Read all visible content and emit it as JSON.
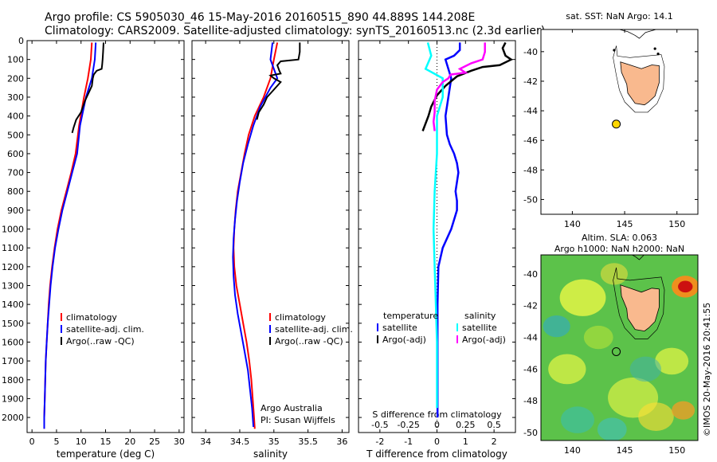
{
  "title_line1": "Argo profile: CS 5905030_46 15-May-2016 20160515_890 44.889S 144.208E",
  "title_line2": "Climatology: CARS2009. Satellite-adjusted climatology: synTS_20160513.nc (2.3d earlier)",
  "watermark": "©IMOS 20-May-2016 20:41:55",
  "colors": {
    "clim": "#ff0000",
    "sat": "#0000ff",
    "argo": "#000000",
    "sal_sat": "#00ffff",
    "sal_argo": "#ff00ff",
    "land": "#f9b98e"
  },
  "chart_data": [
    {
      "type": "line",
      "id": "temperature",
      "xlabel": "temperature (deg C)",
      "ylabel": "",
      "xlim": [
        -1,
        31
      ],
      "ylim": [
        2080,
        0
      ],
      "xticks": [
        0,
        5,
        10,
        15,
        20,
        25,
        30
      ],
      "yticks": [
        0,
        100,
        200,
        300,
        400,
        500,
        600,
        700,
        800,
        900,
        1000,
        1100,
        1200,
        1300,
        1400,
        1500,
        1600,
        1700,
        1800,
        1900,
        2000
      ],
      "legend": [
        "climatology",
        "satellite-adj. clim.",
        "Argo(..raw -QC)"
      ],
      "legend_colors": [
        "#ff0000",
        "#0000ff",
        "#000000"
      ],
      "series": [
        {
          "name": "climatology",
          "color": "#ff0000",
          "points": [
            [
              12.2,
              10
            ],
            [
              12.0,
              100
            ],
            [
              11.4,
              200
            ],
            [
              10.6,
              300
            ],
            [
              9.6,
              450
            ],
            [
              8.9,
              600
            ],
            [
              8.0,
              700
            ],
            [
              7.0,
              800
            ],
            [
              6.0,
              900
            ],
            [
              5.2,
              1000
            ],
            [
              4.6,
              1100
            ],
            [
              4.1,
              1200
            ],
            [
              3.7,
              1300
            ],
            [
              3.4,
              1400
            ],
            [
              3.2,
              1500
            ],
            [
              3.0,
              1600
            ],
            [
              2.8,
              1700
            ],
            [
              2.7,
              1800
            ],
            [
              2.6,
              1900
            ],
            [
              2.5,
              2000
            ],
            [
              2.5,
              2060
            ]
          ]
        },
        {
          "name": "satellite-adj. clim.",
          "color": "#0000ff",
          "points": [
            [
              13.0,
              10
            ],
            [
              12.8,
              100
            ],
            [
              12.2,
              200
            ],
            [
              11.0,
              300
            ],
            [
              9.8,
              450
            ],
            [
              9.2,
              600
            ],
            [
              8.2,
              700
            ],
            [
              7.2,
              800
            ],
            [
              6.2,
              900
            ],
            [
              5.4,
              1000
            ],
            [
              4.7,
              1100
            ],
            [
              4.2,
              1200
            ],
            [
              3.8,
              1300
            ],
            [
              3.5,
              1400
            ],
            [
              3.2,
              1500
            ],
            [
              3.0,
              1600
            ],
            [
              2.8,
              1700
            ],
            [
              2.7,
              1800
            ],
            [
              2.6,
              1900
            ],
            [
              2.5,
              2000
            ],
            [
              2.5,
              2060
            ]
          ]
        },
        {
          "name": "Argo(..raw -QC)",
          "color": "#000000",
          "points": [
            [
              14.6,
              10
            ],
            [
              14.5,
              60
            ],
            [
              14.4,
              100
            ],
            [
              14.3,
              130
            ],
            [
              14.2,
              150
            ],
            [
              13.2,
              160
            ],
            [
              12.6,
              180
            ],
            [
              12.4,
              200
            ],
            [
              12.2,
              240
            ],
            [
              11.5,
              280
            ],
            [
              10.8,
              320
            ],
            [
              10.0,
              380
            ],
            [
              9.0,
              420
            ],
            [
              8.5,
              460
            ],
            [
              8.2,
              490
            ]
          ]
        }
      ]
    },
    {
      "type": "line",
      "id": "salinity",
      "xlabel": "salinity",
      "ylabel": "",
      "xlim": [
        33.8,
        36.1
      ],
      "ylim": [
        2080,
        0
      ],
      "xticks": [
        34,
        34.5,
        35,
        35.5,
        36
      ],
      "legend": [
        "climatology",
        "satellite-adj. clim.",
        "Argo(..raw -QC)"
      ],
      "legend_colors": [
        "#ff0000",
        "#0000ff",
        "#000000"
      ],
      "annotation": [
        "Argo Australia",
        "PI: Susan Wijffels"
      ],
      "series": [
        {
          "name": "climatology",
          "color": "#ff0000",
          "points": [
            [
              35.05,
              10
            ],
            [
              35.0,
              100
            ],
            [
              34.95,
              200
            ],
            [
              34.85,
              300
            ],
            [
              34.72,
              400
            ],
            [
              34.63,
              500
            ],
            [
              34.57,
              600
            ],
            [
              34.52,
              700
            ],
            [
              34.47,
              800
            ],
            [
              34.44,
              900
            ],
            [
              34.42,
              1000
            ],
            [
              34.41,
              1100
            ],
            [
              34.42,
              1200
            ],
            [
              34.45,
              1300
            ],
            [
              34.5,
              1400
            ],
            [
              34.55,
              1500
            ],
            [
              34.6,
              1600
            ],
            [
              34.64,
              1700
            ],
            [
              34.67,
              1800
            ],
            [
              34.69,
              1900
            ],
            [
              34.71,
              2000
            ],
            [
              34.72,
              2060
            ]
          ]
        },
        {
          "name": "satellite-adj. clim.",
          "color": "#0000ff",
          "points": [
            [
              34.98,
              10
            ],
            [
              34.95,
              100
            ],
            [
              35.0,
              150
            ],
            [
              35.05,
              200
            ],
            [
              34.95,
              250
            ],
            [
              34.8,
              350
            ],
            [
              34.7,
              450
            ],
            [
              34.62,
              550
            ],
            [
              34.55,
              650
            ],
            [
              34.5,
              750
            ],
            [
              34.46,
              850
            ],
            [
              34.43,
              950
            ],
            [
              34.41,
              1050
            ],
            [
              34.4,
              1150
            ],
            [
              34.41,
              1250
            ],
            [
              34.43,
              1350
            ],
            [
              34.47,
              1450
            ],
            [
              34.52,
              1550
            ],
            [
              34.57,
              1650
            ],
            [
              34.62,
              1750
            ],
            [
              34.65,
              1850
            ],
            [
              34.68,
              1950
            ],
            [
              34.7,
              2050
            ]
          ]
        },
        {
          "name": "Argo(..raw -QC)",
          "color": "#000000",
          "points": [
            [
              35.38,
              10
            ],
            [
              35.38,
              60
            ],
            [
              35.36,
              100
            ],
            [
              35.1,
              110
            ],
            [
              35.05,
              130
            ],
            [
              35.08,
              160
            ],
            [
              35.1,
              175
            ],
            [
              34.95,
              185
            ],
            [
              35.0,
              200
            ],
            [
              35.1,
              220
            ],
            [
              35.0,
              260
            ],
            [
              34.9,
              300
            ],
            [
              34.85,
              340
            ],
            [
              34.78,
              380
            ],
            [
              34.75,
              420
            ]
          ]
        }
      ]
    },
    {
      "type": "line",
      "id": "difference",
      "xlabel": "T difference from climatology",
      "x2label": "S difference from climatology",
      "xlim": [
        -2.75,
        2.75
      ],
      "x2lim": [
        -0.6875,
        0.6875
      ],
      "ylim": [
        2080,
        0
      ],
      "xticks": [
        -2,
        -1,
        0,
        1,
        2
      ],
      "x2ticks": [
        -0.5,
        -0.25,
        0,
        0.25,
        0.5
      ],
      "legend_headers": [
        "temperature",
        "salinity"
      ],
      "legend": [
        "satellite",
        "Argo(-adj)",
        "satellite",
        "Argo(-adj)"
      ],
      "legend_colors": [
        "#0000ff",
        "#000000",
        "#00ffff",
        "#ff00ff"
      ],
      "series": [
        {
          "name": "satellite",
          "color": "#0000ff",
          "axis": "T",
          "points": [
            [
              0.8,
              10
            ],
            [
              0.8,
              50
            ],
            [
              0.6,
              80
            ],
            [
              0.3,
              100
            ],
            [
              0.5,
              200
            ],
            [
              0.4,
              300
            ],
            [
              0.3,
              400
            ],
            [
              0.35,
              500
            ],
            [
              0.45,
              550
            ],
            [
              0.6,
              600
            ],
            [
              0.7,
              650
            ],
            [
              0.75,
              700
            ],
            [
              0.7,
              750
            ],
            [
              0.65,
              800
            ],
            [
              0.7,
              850
            ],
            [
              0.7,
              900
            ],
            [
              0.6,
              950
            ],
            [
              0.5,
              1000
            ],
            [
              0.2,
              1100
            ],
            [
              0.05,
              1200
            ],
            [
              0.02,
              1400
            ],
            [
              0.02,
              2000
            ]
          ]
        },
        {
          "name": "Argo(-adj)",
          "color": "#000000",
          "axis": "T",
          "points": [
            [
              2.4,
              10
            ],
            [
              2.3,
              40
            ],
            [
              2.4,
              80
            ],
            [
              2.6,
              100
            ],
            [
              2.2,
              130
            ],
            [
              1.6,
              140
            ],
            [
              1.2,
              160
            ],
            [
              0.7,
              190
            ],
            [
              0.3,
              240
            ],
            [
              0.0,
              290
            ],
            [
              -0.2,
              350
            ],
            [
              -0.3,
              400
            ],
            [
              -0.4,
              440
            ],
            [
              -0.5,
              480
            ]
          ]
        },
        {
          "name": "satellite",
          "color": "#00ffff",
          "axis": "S",
          "points": [
            [
              -0.08,
              10
            ],
            [
              -0.05,
              80
            ],
            [
              -0.1,
              150
            ],
            [
              0.05,
              200
            ],
            [
              0.05,
              300
            ],
            [
              0.0,
              400
            ],
            [
              0.0,
              600
            ],
            [
              -0.02,
              800
            ],
            [
              -0.03,
              1000
            ],
            [
              -0.02,
              1200
            ],
            [
              -0.01,
              1400
            ],
            [
              0.0,
              1600
            ],
            [
              0.0,
              1800
            ],
            [
              0.0,
              1950
            ]
          ]
        },
        {
          "name": "Argo(-adj)",
          "color": "#ff00ff",
          "axis": "S",
          "points": [
            [
              0.42,
              10
            ],
            [
              0.42,
              60
            ],
            [
              0.4,
              100
            ],
            [
              0.3,
              120
            ],
            [
              0.2,
              150
            ],
            [
              0.25,
              170
            ],
            [
              0.12,
              180
            ],
            [
              0.1,
              200
            ],
            [
              0.05,
              220
            ],
            [
              0.0,
              260
            ],
            [
              -0.02,
              320
            ],
            [
              -0.02,
              380
            ],
            [
              -0.03,
              430
            ],
            [
              -0.02,
              480
            ]
          ]
        }
      ]
    },
    {
      "type": "map",
      "id": "sst_map",
      "title": "sat. SST: NaN Argo: 14.1",
      "xlim": [
        137,
        152
      ],
      "ylim": [
        -51,
        -38.5
      ],
      "xticks": [
        140,
        145,
        150
      ],
      "yticks": [
        -50,
        -48,
        -46,
        -44,
        -42,
        -40
      ],
      "float": {
        "lon": 144.2,
        "lat": -44.9
      }
    },
    {
      "type": "heatmap",
      "id": "sla_map",
      "title_line1": "Altim. SLA: 0.063",
      "title_line2": "Argo h1000: NaN h2000: NaN",
      "xlim": [
        137,
        152
      ],
      "ylim": [
        -50.5,
        -38.8
      ],
      "xticks": [
        140,
        145,
        150
      ],
      "yticks": [
        -50,
        -48,
        -46,
        -44,
        -42,
        -40
      ],
      "float": {
        "lon": 144.2,
        "lat": -44.9
      }
    }
  ]
}
